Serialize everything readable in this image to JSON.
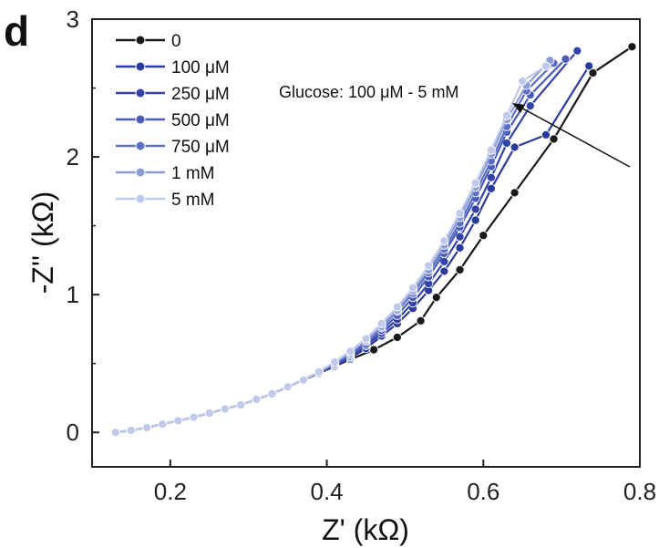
{
  "panel_label": "d",
  "chart_data": {
    "type": "line",
    "title": "",
    "xlabel": "Z' (kΩ)",
    "ylabel": "-Z'' (kΩ)",
    "xlim": [
      0.1,
      0.8
    ],
    "ylim": [
      -0.25,
      3.0
    ],
    "xticks": [
      0.2,
      0.4,
      0.6,
      0.8
    ],
    "xtick_labels": [
      "0.2",
      "0.4",
      "0.6",
      "0.8"
    ],
    "yticks": [
      0,
      1,
      2,
      3
    ],
    "ytick_labels": [
      "0",
      "1",
      "2",
      "3"
    ],
    "legend_position": "top-left",
    "grid": false,
    "annotation": "Glucose: 100 μM - 5 mM",
    "series": [
      {
        "name": "0",
        "color": "#1a1a1a",
        "x": [
          0.13,
          0.15,
          0.17,
          0.19,
          0.21,
          0.23,
          0.25,
          0.27,
          0.29,
          0.31,
          0.33,
          0.35,
          0.37,
          0.39,
          0.41,
          0.43,
          0.46,
          0.49,
          0.52,
          0.54,
          0.57,
          0.6,
          0.64,
          0.69,
          0.74,
          0.79
        ],
        "y": [
          0.0,
          0.015,
          0.035,
          0.06,
          0.085,
          0.11,
          0.14,
          0.17,
          0.2,
          0.24,
          0.28,
          0.33,
          0.38,
          0.43,
          0.48,
          0.53,
          0.6,
          0.69,
          0.81,
          0.98,
          1.18,
          1.43,
          1.74,
          2.13,
          2.61,
          2.8
        ]
      },
      {
        "name": "100 μM",
        "color": "#2b3a9c",
        "x": [
          0.13,
          0.15,
          0.17,
          0.19,
          0.21,
          0.23,
          0.25,
          0.27,
          0.29,
          0.31,
          0.33,
          0.35,
          0.37,
          0.39,
          0.41,
          0.43,
          0.45,
          0.47,
          0.49,
          0.51,
          0.53,
          0.55,
          0.57,
          0.59,
          0.61,
          0.64,
          0.68,
          0.735
        ],
        "y": [
          0.0,
          0.015,
          0.035,
          0.06,
          0.085,
          0.11,
          0.14,
          0.17,
          0.2,
          0.24,
          0.28,
          0.33,
          0.38,
          0.43,
          0.48,
          0.54,
          0.61,
          0.7,
          0.79,
          0.9,
          1.03,
          1.17,
          1.34,
          1.54,
          1.77,
          2.07,
          2.16,
          2.66
        ]
      },
      {
        "name": "250 μM",
        "color": "#3243a8",
        "x": [
          0.13,
          0.15,
          0.17,
          0.19,
          0.21,
          0.23,
          0.25,
          0.27,
          0.29,
          0.31,
          0.33,
          0.35,
          0.37,
          0.39,
          0.41,
          0.43,
          0.45,
          0.47,
          0.49,
          0.51,
          0.53,
          0.55,
          0.57,
          0.59,
          0.61,
          0.63,
          0.66,
          0.72
        ],
        "y": [
          0.0,
          0.015,
          0.035,
          0.06,
          0.085,
          0.11,
          0.14,
          0.17,
          0.2,
          0.24,
          0.28,
          0.33,
          0.38,
          0.43,
          0.49,
          0.55,
          0.63,
          0.72,
          0.82,
          0.94,
          1.08,
          1.24,
          1.42,
          1.62,
          1.85,
          2.1,
          2.37,
          2.77
        ]
      },
      {
        "name": "500 μM",
        "color": "#4a5cb8",
        "x": [
          0.13,
          0.15,
          0.17,
          0.19,
          0.21,
          0.23,
          0.25,
          0.27,
          0.29,
          0.31,
          0.33,
          0.35,
          0.37,
          0.39,
          0.41,
          0.43,
          0.45,
          0.47,
          0.49,
          0.51,
          0.53,
          0.55,
          0.57,
          0.59,
          0.61,
          0.63,
          0.66,
          0.705
        ],
        "y": [
          0.0,
          0.015,
          0.035,
          0.06,
          0.085,
          0.11,
          0.14,
          0.17,
          0.2,
          0.24,
          0.28,
          0.33,
          0.38,
          0.43,
          0.49,
          0.56,
          0.64,
          0.74,
          0.85,
          0.98,
          1.13,
          1.3,
          1.49,
          1.7,
          1.93,
          2.18,
          2.45,
          2.71
        ]
      },
      {
        "name": "750 μM",
        "color": "#5a6fc4",
        "x": [
          0.13,
          0.15,
          0.17,
          0.19,
          0.21,
          0.23,
          0.25,
          0.27,
          0.29,
          0.31,
          0.33,
          0.35,
          0.37,
          0.39,
          0.41,
          0.43,
          0.45,
          0.47,
          0.49,
          0.51,
          0.53,
          0.55,
          0.57,
          0.59,
          0.61,
          0.63,
          0.655,
          0.69
        ],
        "y": [
          0.0,
          0.015,
          0.035,
          0.06,
          0.085,
          0.11,
          0.14,
          0.17,
          0.2,
          0.24,
          0.28,
          0.33,
          0.38,
          0.44,
          0.5,
          0.57,
          0.66,
          0.76,
          0.88,
          1.01,
          1.16,
          1.33,
          1.52,
          1.74,
          1.97,
          2.22,
          2.48,
          2.68
        ]
      },
      {
        "name": "1 mM",
        "color": "#8b9bd4",
        "x": [
          0.13,
          0.15,
          0.17,
          0.19,
          0.21,
          0.23,
          0.25,
          0.27,
          0.29,
          0.31,
          0.33,
          0.35,
          0.37,
          0.39,
          0.41,
          0.43,
          0.45,
          0.47,
          0.49,
          0.51,
          0.53,
          0.55,
          0.57,
          0.59,
          0.61,
          0.63,
          0.655,
          0.685
        ],
        "y": [
          0.0,
          0.015,
          0.035,
          0.06,
          0.085,
          0.11,
          0.14,
          0.17,
          0.2,
          0.24,
          0.28,
          0.33,
          0.38,
          0.44,
          0.51,
          0.58,
          0.67,
          0.77,
          0.89,
          1.03,
          1.18,
          1.36,
          1.56,
          1.78,
          2.02,
          2.27,
          2.52,
          2.7
        ]
      },
      {
        "name": "5 mM",
        "color": "#c0c9ea",
        "x": [
          0.13,
          0.15,
          0.17,
          0.19,
          0.21,
          0.23,
          0.25,
          0.27,
          0.29,
          0.31,
          0.33,
          0.35,
          0.37,
          0.39,
          0.41,
          0.43,
          0.45,
          0.47,
          0.49,
          0.51,
          0.53,
          0.55,
          0.57,
          0.59,
          0.61,
          0.63,
          0.65,
          0.68
        ],
        "y": [
          0.0,
          0.015,
          0.035,
          0.06,
          0.085,
          0.11,
          0.14,
          0.17,
          0.2,
          0.24,
          0.28,
          0.33,
          0.38,
          0.44,
          0.51,
          0.59,
          0.68,
          0.79,
          0.91,
          1.05,
          1.21,
          1.39,
          1.59,
          1.81,
          2.05,
          2.3,
          2.55,
          2.66
        ]
      }
    ]
  }
}
